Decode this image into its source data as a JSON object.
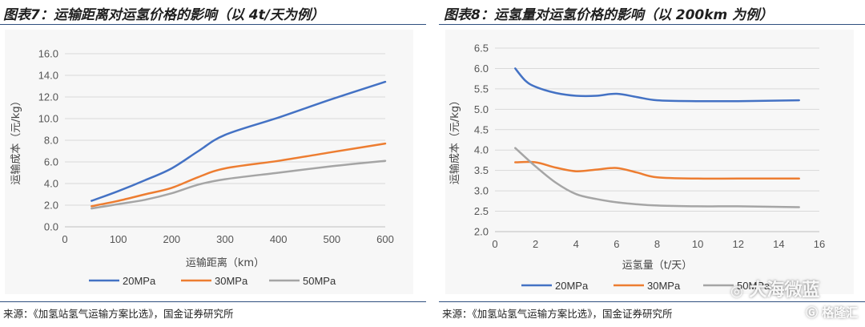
{
  "left": {
    "title": "图表7：运输距离对运氢价格的影响（以 4t/天为例）",
    "source": "来源：《加氢站氢气运输方案比选》，国金证券研究所"
  },
  "right": {
    "title": "图表8：运氢量对运氢价格的影响（以 200km 为例）",
    "source": "来源：《加氢站氢气运输方案比选》，国金证券研究所"
  },
  "watermark": {
    "account": "大海微蓝",
    "brand": "格隆汇"
  },
  "colors": {
    "20MPa": "#4472c4",
    "30MPa": "#ed7d31",
    "50MPa": "#a5a5a5"
  },
  "chart_data": [
    {
      "type": "line",
      "xlabel": "运输距离（km）",
      "ylabel": "运输成本（元/kg）",
      "xlim": [
        0,
        600
      ],
      "ylim": [
        0,
        16
      ],
      "xticks": [
        0,
        100,
        200,
        300,
        400,
        500,
        600
      ],
      "yticks": [
        0.0,
        2.0,
        4.0,
        6.0,
        8.0,
        10.0,
        12.0,
        14.0,
        16.0
      ],
      "grid": "horizontal",
      "legend": "bottom",
      "series": [
        {
          "name": "20MPa",
          "points": [
            [
              50,
              2.4
            ],
            [
              100,
              3.3
            ],
            [
              150,
              4.3
            ],
            [
              200,
              5.4
            ],
            [
              250,
              7.0
            ],
            [
              300,
              8.5
            ],
            [
              400,
              10.1
            ],
            [
              500,
              11.8
            ],
            [
              600,
              13.4
            ]
          ]
        },
        {
          "name": "30MPa",
          "points": [
            [
              50,
              1.9
            ],
            [
              100,
              2.4
            ],
            [
              150,
              3.0
            ],
            [
              200,
              3.6
            ],
            [
              250,
              4.6
            ],
            [
              300,
              5.4
            ],
            [
              400,
              6.1
            ],
            [
              500,
              6.9
            ],
            [
              600,
              7.7
            ]
          ]
        },
        {
          "name": "50MPa",
          "points": [
            [
              50,
              1.7
            ],
            [
              100,
              2.1
            ],
            [
              150,
              2.5
            ],
            [
              200,
              3.1
            ],
            [
              250,
              3.9
            ],
            [
              300,
              4.4
            ],
            [
              400,
              5.0
            ],
            [
              500,
              5.6
            ],
            [
              600,
              6.1
            ]
          ]
        }
      ]
    },
    {
      "type": "line",
      "xlabel": "运氢量（t/天）",
      "ylabel": "运输成本（元/kg）",
      "xlim": [
        0,
        16
      ],
      "ylim": [
        2.0,
        6.5
      ],
      "xticks": [
        0,
        2,
        4,
        6,
        8,
        10,
        12,
        14,
        16
      ],
      "yticks": [
        2.0,
        2.5,
        3.0,
        3.5,
        4.0,
        4.5,
        5.0,
        5.5,
        6.0,
        6.5
      ],
      "grid": "horizontal",
      "legend": "bottom",
      "series": [
        {
          "name": "20MPa",
          "points": [
            [
              1,
              6.0
            ],
            [
              1.5,
              5.7
            ],
            [
              2,
              5.55
            ],
            [
              3,
              5.4
            ],
            [
              4,
              5.33
            ],
            [
              5,
              5.33
            ],
            [
              6,
              5.38
            ],
            [
              7,
              5.3
            ],
            [
              8,
              5.22
            ],
            [
              10,
              5.2
            ],
            [
              12,
              5.2
            ],
            [
              15,
              5.22
            ]
          ]
        },
        {
          "name": "30MPa",
          "points": [
            [
              1,
              3.7
            ],
            [
              2,
              3.7
            ],
            [
              3,
              3.57
            ],
            [
              4,
              3.48
            ],
            [
              5,
              3.52
            ],
            [
              6,
              3.56
            ],
            [
              7,
              3.45
            ],
            [
              8,
              3.33
            ],
            [
              10,
              3.3
            ],
            [
              12,
              3.3
            ],
            [
              15,
              3.3
            ]
          ]
        },
        {
          "name": "50MPa",
          "points": [
            [
              1,
              4.05
            ],
            [
              2,
              3.6
            ],
            [
              3,
              3.2
            ],
            [
              4,
              2.92
            ],
            [
              5,
              2.8
            ],
            [
              6,
              2.72
            ],
            [
              7,
              2.67
            ],
            [
              8,
              2.64
            ],
            [
              10,
              2.62
            ],
            [
              12,
              2.62
            ],
            [
              15,
              2.6
            ]
          ]
        }
      ]
    }
  ]
}
